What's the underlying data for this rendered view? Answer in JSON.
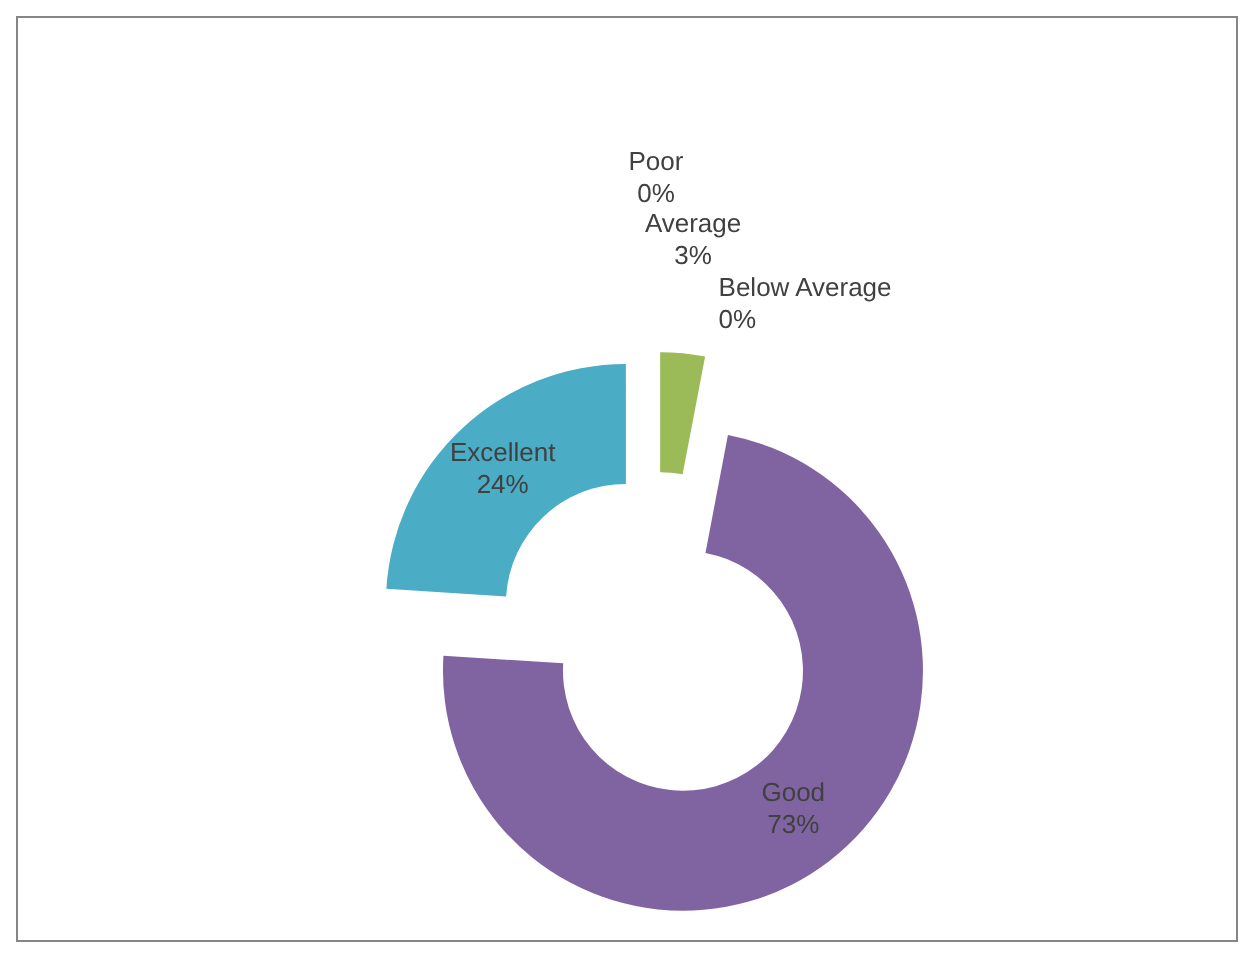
{
  "chart_data": {
    "type": "donut",
    "categories": [
      "Poor",
      "Average",
      "Below Average",
      "Good",
      "Excellent"
    ],
    "values": [
      0,
      3,
      0,
      73,
      24
    ],
    "colors": [
      "#c0504d",
      "#9bbb59",
      "#4f81bd",
      "#8064a2",
      "#4bacc6"
    ],
    "value_labels": [
      "0%",
      "3%",
      "0%",
      "73%",
      "24%"
    ],
    "legend": false
  }
}
